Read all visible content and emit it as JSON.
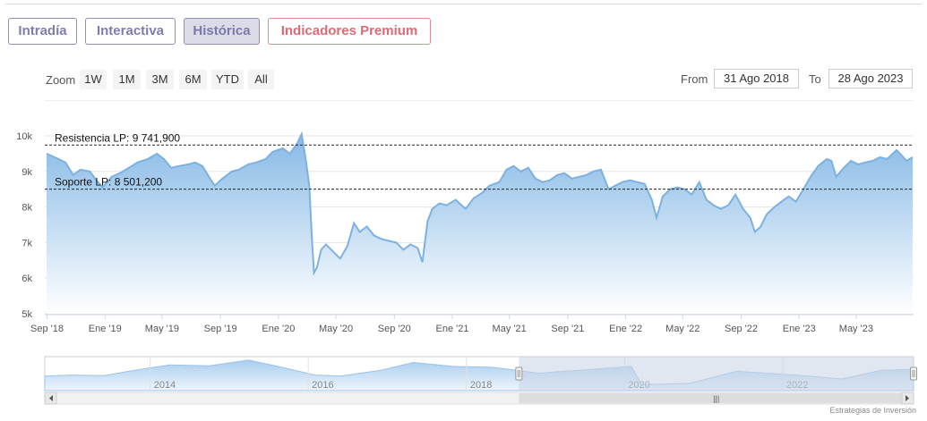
{
  "tabs": [
    {
      "label": "Intradía"
    },
    {
      "label": "Interactiva"
    },
    {
      "label": "Histórica"
    },
    {
      "label": "Indicadores Premium"
    }
  ],
  "zoom": {
    "label": "Zoom",
    "buttons": [
      "1W",
      "1M",
      "3M",
      "6M",
      "YTD",
      "All"
    ]
  },
  "range": {
    "from_label": "From",
    "from_value": "31 Ago 2018",
    "to_label": "To",
    "to_value": "28 Ago 2023"
  },
  "colors": {
    "line": "#7cb1e0",
    "area_top": "#86b9e6",
    "area_bottom": "#ffffff",
    "navigator_mask": "#c8d4e6"
  },
  "chart_data": {
    "type": "area",
    "title": "",
    "xlabel": "",
    "ylabel": "",
    "ylim": [
      5000,
      10000
    ],
    "y_ticks": [
      "5k",
      "6k",
      "7k",
      "8k",
      "9k",
      "10k"
    ],
    "x_ticks": [
      "Sep '18",
      "Ene '19",
      "May '19",
      "Sep '19",
      "Ene '20",
      "May '20",
      "Sep '20",
      "Ene '21",
      "May '21",
      "Sep '21",
      "Ene '22",
      "May '22",
      "Sep '22",
      "Ene '23",
      "May '23"
    ],
    "x_range": [
      "2018-08-31",
      "2023-08-28"
    ],
    "grid": true,
    "plot_lines": [
      {
        "label": "Resistencia LP: 9 741,900",
        "value": 9741.9
      },
      {
        "label": "Soporte LP: 8 501,200",
        "value": 8501.2
      }
    ],
    "series": [
      {
        "values": [
          [
            "2018-08-31",
            9500
          ],
          [
            "2018-09-20",
            9380
          ],
          [
            "2018-10-10",
            9250
          ],
          [
            "2018-10-26",
            8900
          ],
          [
            "2018-11-10",
            9050
          ],
          [
            "2018-11-30",
            9000
          ],
          [
            "2018-12-14",
            8750
          ],
          [
            "2018-12-27",
            8550
          ],
          [
            "2019-01-15",
            8850
          ],
          [
            "2019-02-01",
            8950
          ],
          [
            "2019-02-20",
            9100
          ],
          [
            "2019-03-10",
            9250
          ],
          [
            "2019-04-01",
            9350
          ],
          [
            "2019-04-20",
            9500
          ],
          [
            "2019-05-05",
            9350
          ],
          [
            "2019-05-20",
            9100
          ],
          [
            "2019-06-05",
            9150
          ],
          [
            "2019-06-25",
            9200
          ],
          [
            "2019-07-10",
            9250
          ],
          [
            "2019-07-25",
            9150
          ],
          [
            "2019-08-10",
            8800
          ],
          [
            "2019-08-20",
            8600
          ],
          [
            "2019-09-05",
            8800
          ],
          [
            "2019-09-25",
            9000
          ],
          [
            "2019-10-10",
            9050
          ],
          [
            "2019-10-30",
            9200
          ],
          [
            "2019-11-15",
            9250
          ],
          [
            "2019-12-05",
            9350
          ],
          [
            "2019-12-20",
            9550
          ],
          [
            "2020-01-10",
            9650
          ],
          [
            "2020-01-25",
            9500
          ],
          [
            "2020-02-10",
            9800
          ],
          [
            "2020-02-19",
            10050
          ],
          [
            "2020-02-28",
            9300
          ],
          [
            "2020-03-06",
            8600
          ],
          [
            "2020-03-12",
            7000
          ],
          [
            "2020-03-16",
            6150
          ],
          [
            "2020-03-22",
            6300
          ],
          [
            "2020-03-31",
            6800
          ],
          [
            "2020-04-10",
            6950
          ],
          [
            "2020-04-25",
            6750
          ],
          [
            "2020-05-10",
            6550
          ],
          [
            "2020-05-25",
            6900
          ],
          [
            "2020-06-08",
            7550
          ],
          [
            "2020-06-20",
            7300
          ],
          [
            "2020-07-05",
            7450
          ],
          [
            "2020-07-20",
            7200
          ],
          [
            "2020-08-05",
            7100
          ],
          [
            "2020-08-20",
            7050
          ],
          [
            "2020-09-05",
            7000
          ],
          [
            "2020-09-20",
            6800
          ],
          [
            "2020-10-05",
            6950
          ],
          [
            "2020-10-20",
            6850
          ],
          [
            "2020-10-30",
            6450
          ],
          [
            "2020-11-10",
            7600
          ],
          [
            "2020-11-20",
            7950
          ],
          [
            "2020-12-05",
            8100
          ],
          [
            "2020-12-20",
            8050
          ],
          [
            "2021-01-08",
            8200
          ],
          [
            "2021-01-29",
            7950
          ],
          [
            "2021-02-15",
            8250
          ],
          [
            "2021-03-05",
            8400
          ],
          [
            "2021-03-20",
            8600
          ],
          [
            "2021-04-10",
            8700
          ],
          [
            "2021-04-25",
            9050
          ],
          [
            "2021-05-10",
            9150
          ],
          [
            "2021-05-25",
            9000
          ],
          [
            "2021-06-10",
            9100
          ],
          [
            "2021-06-25",
            8800
          ],
          [
            "2021-07-10",
            8700
          ],
          [
            "2021-07-25",
            8750
          ],
          [
            "2021-08-10",
            8900
          ],
          [
            "2021-08-25",
            8950
          ],
          [
            "2021-09-10",
            8800
          ],
          [
            "2021-09-25",
            8850
          ],
          [
            "2021-10-10",
            8900
          ],
          [
            "2021-10-25",
            9000
          ],
          [
            "2021-11-10",
            9050
          ],
          [
            "2021-11-26",
            8500
          ],
          [
            "2021-12-10",
            8600
          ],
          [
            "2021-12-25",
            8700
          ],
          [
            "2022-01-10",
            8750
          ],
          [
            "2022-01-25",
            8700
          ],
          [
            "2022-02-10",
            8650
          ],
          [
            "2022-02-25",
            8200
          ],
          [
            "2022-03-07",
            7700
          ],
          [
            "2022-03-20",
            8300
          ],
          [
            "2022-04-05",
            8500
          ],
          [
            "2022-04-20",
            8550
          ],
          [
            "2022-05-05",
            8500
          ],
          [
            "2022-05-20",
            8350
          ],
          [
            "2022-06-05",
            8700
          ],
          [
            "2022-06-20",
            8200
          ],
          [
            "2022-07-05",
            8050
          ],
          [
            "2022-07-20",
            7950
          ],
          [
            "2022-08-05",
            8050
          ],
          [
            "2022-08-20",
            8350
          ],
          [
            "2022-09-05",
            7950
          ],
          [
            "2022-09-20",
            7700
          ],
          [
            "2022-09-30",
            7300
          ],
          [
            "2022-10-12",
            7450
          ],
          [
            "2022-10-25",
            7800
          ],
          [
            "2022-11-10",
            8000
          ],
          [
            "2022-11-25",
            8150
          ],
          [
            "2022-12-10",
            8300
          ],
          [
            "2022-12-25",
            8150
          ],
          [
            "2023-01-10",
            8500
          ],
          [
            "2023-01-25",
            8850
          ],
          [
            "2023-02-10",
            9150
          ],
          [
            "2023-02-28",
            9350
          ],
          [
            "2023-03-10",
            9300
          ],
          [
            "2023-03-20",
            8850
          ],
          [
            "2023-04-05",
            9100
          ],
          [
            "2023-04-20",
            9300
          ],
          [
            "2023-05-05",
            9200
          ],
          [
            "2023-05-20",
            9250
          ],
          [
            "2023-06-05",
            9300
          ],
          [
            "2023-06-20",
            9400
          ],
          [
            "2023-07-05",
            9350
          ],
          [
            "2023-07-25",
            9600
          ],
          [
            "2023-08-05",
            9450
          ],
          [
            "2023-08-15",
            9300
          ],
          [
            "2023-08-28",
            9400
          ]
        ]
      }
    ]
  },
  "navigator": {
    "labels": [
      "2014",
      "2016",
      "2018",
      "2020",
      "2022"
    ],
    "window": [
      "2018-08-31",
      "2023-08-28"
    ],
    "x_range": [
      "2012-09-01",
      "2023-08-28"
    ],
    "scroll_grip": "|||"
  },
  "credit": "Estrategias de Inversión"
}
